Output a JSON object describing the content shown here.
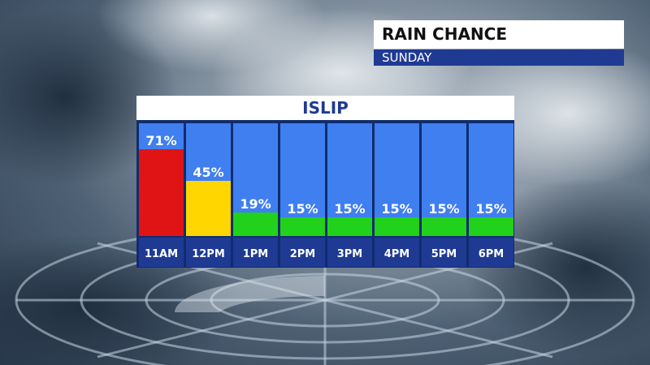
{
  "header": {
    "title": "RAIN CHANCE",
    "subtitle": "SUNDAY"
  },
  "chart_data": {
    "type": "bar",
    "title": "ISLIP",
    "categories": [
      "11AM",
      "12PM",
      "1PM",
      "2PM",
      "3PM",
      "4PM",
      "5PM",
      "6PM"
    ],
    "values": [
      71,
      45,
      19,
      15,
      15,
      15,
      15,
      15
    ],
    "value_labels": [
      "71%",
      "45%",
      "19%",
      "15%",
      "15%",
      "15%",
      "15%",
      "15%"
    ],
    "unit": "%",
    "ylim": [
      0,
      100
    ],
    "bar_colors": [
      "#e01414",
      "#ffd600",
      "#21d11b",
      "#21d11b",
      "#21d11b",
      "#21d11b",
      "#21d11b",
      "#21d11b"
    ],
    "column_background": "#3f7ff0",
    "label_background": "#1f3a93",
    "grid": false,
    "legend": "none"
  }
}
